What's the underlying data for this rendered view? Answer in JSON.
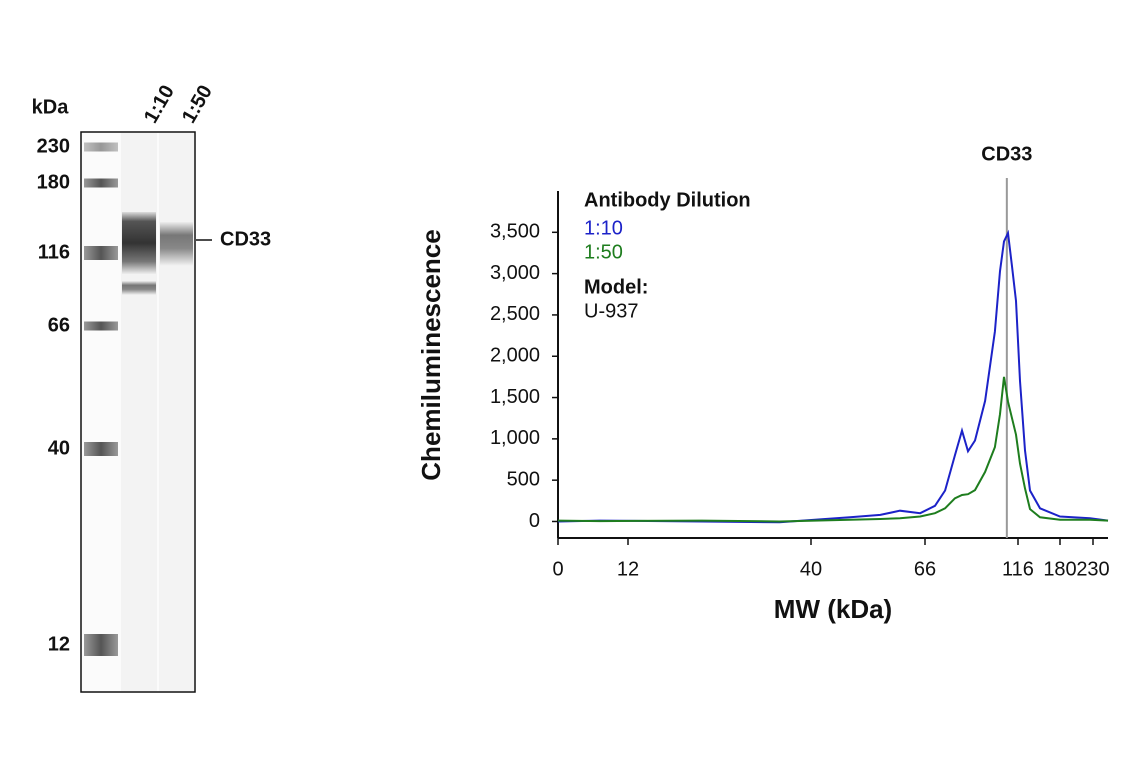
{
  "gel": {
    "unit_label": "kDa",
    "lanes": [
      "1:10",
      "1:50"
    ],
    "markers": [
      230,
      180,
      116,
      66,
      40,
      12
    ],
    "target": "CD33"
  },
  "chart_data": {
    "type": "line",
    "title": "CD33",
    "xlabel": "MW (kDa)",
    "ylabel": "Chemiluminescence",
    "legend_title": "Antibody Dilution",
    "model_label": "Model:",
    "model": "U-937",
    "x": [
      0,
      7.2,
      23.3,
      35.2,
      48.9,
      55.8,
      60.3,
      64.9,
      71.4,
      76.8,
      82.1,
      85.9,
      89.1,
      92.9,
      98.3,
      103.6,
      106.3,
      108.5,
      110.6,
      112.8,
      114.9,
      119,
      126.7,
      134.3,
      149.5,
      180,
      225.5,
      250
    ],
    "series": [
      {
        "name": "1:10",
        "color": "#1c22c8",
        "values": [
          0,
          10,
          0,
          -10,
          50,
          80,
          130,
          100,
          190,
          375,
          800,
          1100,
          850,
          980,
          1460,
          2300,
          3030,
          3390,
          3490,
          3090,
          2670,
          1700,
          860,
          375,
          160,
          60,
          40,
          10
        ]
      },
      {
        "name": "1:50",
        "color": "#1e7d1e",
        "values": [
          10,
          5,
          10,
          0,
          20,
          30,
          40,
          60,
          100,
          160,
          280,
          320,
          330,
          380,
          600,
          900,
          1300,
          1750,
          1450,
          1250,
          1050,
          700,
          400,
          150,
          50,
          20,
          20,
          10
        ]
      }
    ],
    "annotations": [
      {
        "text": "CD33",
        "x": 110
      }
    ],
    "xlim": [
      0,
      250
    ],
    "xticks": [
      0,
      12,
      40,
      66,
      116,
      180,
      230
    ],
    "ylim": [
      -200,
      4000
    ],
    "yticks": [
      0,
      500,
      {
        "value": 1000,
        "label": "1,000"
      },
      {
        "value": 1500,
        "label": "1,500"
      },
      {
        "value": 2000,
        "label": "2,000"
      },
      {
        "value": 2500,
        "label": "2,500"
      },
      {
        "value": 3000,
        "label": "3,000"
      },
      {
        "value": 3500,
        "label": "3,500"
      }
    ]
  }
}
